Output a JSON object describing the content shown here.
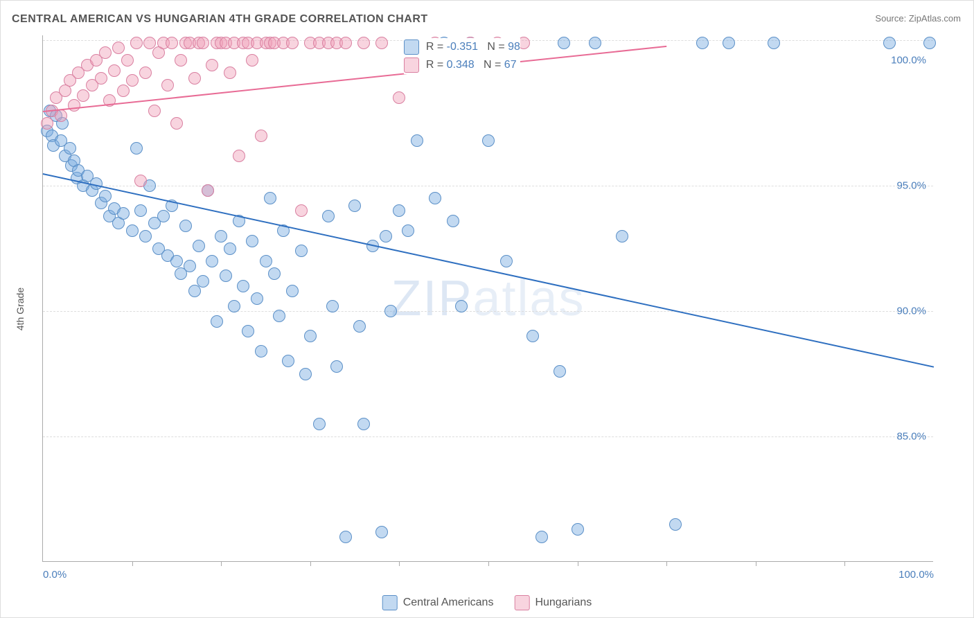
{
  "title": "CENTRAL AMERICAN VS HUNGARIAN 4TH GRADE CORRELATION CHART",
  "source_label": "Source:",
  "source_name": "ZipAtlas.com",
  "watermark": {
    "bold": "ZIP",
    "thin": "atlas"
  },
  "chart": {
    "type": "scatter",
    "ylabel": "4th Grade",
    "xlim": [
      0,
      100
    ],
    "ylim": [
      80,
      101
    ],
    "x_ticks_minor_step": 10,
    "x_tick_labels": [
      {
        "value": 0,
        "label": "0.0%",
        "align": "left"
      },
      {
        "value": 100,
        "label": "100.0%",
        "align": "right"
      }
    ],
    "y_tick_labels": [
      {
        "value": 85,
        "label": "85.0%"
      },
      {
        "value": 90,
        "label": "90.0%"
      },
      {
        "value": 95,
        "label": "95.0%"
      },
      {
        "value": 100,
        "label": "100.0%"
      }
    ],
    "gridlines_y": [
      85,
      90,
      95,
      100.8
    ],
    "background_color": "#ffffff",
    "grid_color": "#dddddd",
    "axis_color": "#aaaaaa",
    "label_fontsize": 14,
    "tick_fontsize": 15,
    "tick_color": "#4a7ebb",
    "marker_radius": 9,
    "marker_border_width": 1.2,
    "series": [
      {
        "name": "Central Americans",
        "fill": "rgba(120,170,225,0.45)",
        "stroke": "#5a8fc7",
        "trend": {
          "x1": 0,
          "y1": 95.5,
          "x2": 100,
          "y2": 87.8,
          "color": "#2e6fc0",
          "width": 2.5
        },
        "stats": {
          "R": "-0.351",
          "N": "98"
        },
        "points": [
          [
            0.5,
            97.2
          ],
          [
            0.8,
            98.0
          ],
          [
            1.0,
            97.0
          ],
          [
            1.2,
            96.6
          ],
          [
            1.5,
            97.8
          ],
          [
            2.0,
            96.8
          ],
          [
            2.2,
            97.5
          ],
          [
            2.5,
            96.2
          ],
          [
            3.0,
            96.5
          ],
          [
            3.2,
            95.8
          ],
          [
            3.5,
            96.0
          ],
          [
            3.8,
            95.3
          ],
          [
            4.0,
            95.6
          ],
          [
            4.5,
            95.0
          ],
          [
            5.0,
            95.4
          ],
          [
            5.5,
            94.8
          ],
          [
            6.0,
            95.1
          ],
          [
            6.5,
            94.3
          ],
          [
            7.0,
            94.6
          ],
          [
            7.5,
            93.8
          ],
          [
            8.0,
            94.1
          ],
          [
            8.5,
            93.5
          ],
          [
            9.0,
            93.9
          ],
          [
            10.0,
            93.2
          ],
          [
            10.5,
            96.5
          ],
          [
            11.0,
            94.0
          ],
          [
            11.5,
            93.0
          ],
          [
            12.0,
            95.0
          ],
          [
            12.5,
            93.5
          ],
          [
            13.0,
            92.5
          ],
          [
            13.5,
            93.8
          ],
          [
            14.0,
            92.2
          ],
          [
            14.5,
            94.2
          ],
          [
            15.0,
            92.0
          ],
          [
            15.5,
            91.5
          ],
          [
            16.0,
            93.4
          ],
          [
            16.5,
            91.8
          ],
          [
            17.0,
            90.8
          ],
          [
            17.5,
            92.6
          ],
          [
            18.0,
            91.2
          ],
          [
            18.5,
            94.8
          ],
          [
            19.0,
            92.0
          ],
          [
            19.5,
            89.6
          ],
          [
            20.0,
            93.0
          ],
          [
            20.5,
            91.4
          ],
          [
            21.0,
            92.5
          ],
          [
            21.5,
            90.2
          ],
          [
            22.0,
            93.6
          ],
          [
            22.5,
            91.0
          ],
          [
            23.0,
            89.2
          ],
          [
            23.5,
            92.8
          ],
          [
            24.0,
            90.5
          ],
          [
            24.5,
            88.4
          ],
          [
            25.0,
            92.0
          ],
          [
            25.5,
            94.5
          ],
          [
            26.0,
            91.5
          ],
          [
            26.5,
            89.8
          ],
          [
            27.0,
            93.2
          ],
          [
            27.5,
            88.0
          ],
          [
            28.0,
            90.8
          ],
          [
            29.0,
            92.4
          ],
          [
            29.5,
            87.5
          ],
          [
            30.0,
            89.0
          ],
          [
            31.0,
            85.5
          ],
          [
            32.0,
            93.8
          ],
          [
            32.5,
            90.2
          ],
          [
            33.0,
            87.8
          ],
          [
            34.0,
            81.0
          ],
          [
            35.0,
            94.2
          ],
          [
            35.5,
            89.4
          ],
          [
            36.0,
            85.5
          ],
          [
            37.0,
            92.6
          ],
          [
            38.0,
            81.2
          ],
          [
            38.5,
            93.0
          ],
          [
            39.0,
            90.0
          ],
          [
            40.0,
            94.0
          ],
          [
            41.0,
            93.2
          ],
          [
            42.0,
            96.8
          ],
          [
            44.0,
            94.5
          ],
          [
            45.0,
            100.7
          ],
          [
            46.0,
            93.6
          ],
          [
            47.0,
            90.2
          ],
          [
            48.0,
            100.7
          ],
          [
            50.0,
            96.8
          ],
          [
            52.0,
            92.0
          ],
          [
            55.0,
            89.0
          ],
          [
            56.0,
            81.0
          ],
          [
            58.0,
            87.6
          ],
          [
            58.5,
            100.7
          ],
          [
            60.0,
            81.3
          ],
          [
            62.0,
            100.7
          ],
          [
            65.0,
            93.0
          ],
          [
            71.0,
            81.5
          ],
          [
            74.0,
            100.7
          ],
          [
            77.0,
            100.7
          ],
          [
            82.0,
            100.7
          ],
          [
            95.0,
            100.7
          ],
          [
            99.5,
            100.7
          ]
        ]
      },
      {
        "name": "Hungarians",
        "fill": "rgba(240,160,185,0.45)",
        "stroke": "#d97fa0",
        "trend": {
          "x1": 0,
          "y1": 98.0,
          "x2": 70,
          "y2": 100.6,
          "color": "#e86b95",
          "width": 2.5
        },
        "stats": {
          "R": "0.348",
          "N": "67"
        },
        "points": [
          [
            0.5,
            97.5
          ],
          [
            1.0,
            98.0
          ],
          [
            1.5,
            98.5
          ],
          [
            2.0,
            97.8
          ],
          [
            2.5,
            98.8
          ],
          [
            3.0,
            99.2
          ],
          [
            3.5,
            98.2
          ],
          [
            4.0,
            99.5
          ],
          [
            4.5,
            98.6
          ],
          [
            5.0,
            99.8
          ],
          [
            5.5,
            99.0
          ],
          [
            6.0,
            100.0
          ],
          [
            6.5,
            99.3
          ],
          [
            7.0,
            100.3
          ],
          [
            7.5,
            98.4
          ],
          [
            8.0,
            99.6
          ],
          [
            8.5,
            100.5
          ],
          [
            9.0,
            98.8
          ],
          [
            9.5,
            100.0
          ],
          [
            10.0,
            99.2
          ],
          [
            10.5,
            100.7
          ],
          [
            11.0,
            95.2
          ],
          [
            11.5,
            99.5
          ],
          [
            12.0,
            100.7
          ],
          [
            12.5,
            98.0
          ],
          [
            13.0,
            100.3
          ],
          [
            13.5,
            100.7
          ],
          [
            14.0,
            99.0
          ],
          [
            14.5,
            100.7
          ],
          [
            15.0,
            97.5
          ],
          [
            15.5,
            100.0
          ],
          [
            16.0,
            100.7
          ],
          [
            16.5,
            100.7
          ],
          [
            17.0,
            99.3
          ],
          [
            17.5,
            100.7
          ],
          [
            18.0,
            100.7
          ],
          [
            18.5,
            94.8
          ],
          [
            19.0,
            99.8
          ],
          [
            19.5,
            100.7
          ],
          [
            20.0,
            100.7
          ],
          [
            20.5,
            100.7
          ],
          [
            21.0,
            99.5
          ],
          [
            21.5,
            100.7
          ],
          [
            22.0,
            96.2
          ],
          [
            22.5,
            100.7
          ],
          [
            23.0,
            100.7
          ],
          [
            23.5,
            100.0
          ],
          [
            24.0,
            100.7
          ],
          [
            24.5,
            97.0
          ],
          [
            25.0,
            100.7
          ],
          [
            25.5,
            100.7
          ],
          [
            26.0,
            100.7
          ],
          [
            27.0,
            100.7
          ],
          [
            28.0,
            100.7
          ],
          [
            29.0,
            94.0
          ],
          [
            30.0,
            100.7
          ],
          [
            31.0,
            100.7
          ],
          [
            32.0,
            100.7
          ],
          [
            33.0,
            100.7
          ],
          [
            34.0,
            100.7
          ],
          [
            36.0,
            100.7
          ],
          [
            38.0,
            100.7
          ],
          [
            40.0,
            98.5
          ],
          [
            44.0,
            100.7
          ],
          [
            48.0,
            100.7
          ],
          [
            51.0,
            100.7
          ],
          [
            54.0,
            100.7
          ]
        ]
      }
    ],
    "statbox": {
      "left_pct": 40.5,
      "top_pct": 0.5
    },
    "legend_labels": [
      "Central Americans",
      "Hungarians"
    ]
  }
}
